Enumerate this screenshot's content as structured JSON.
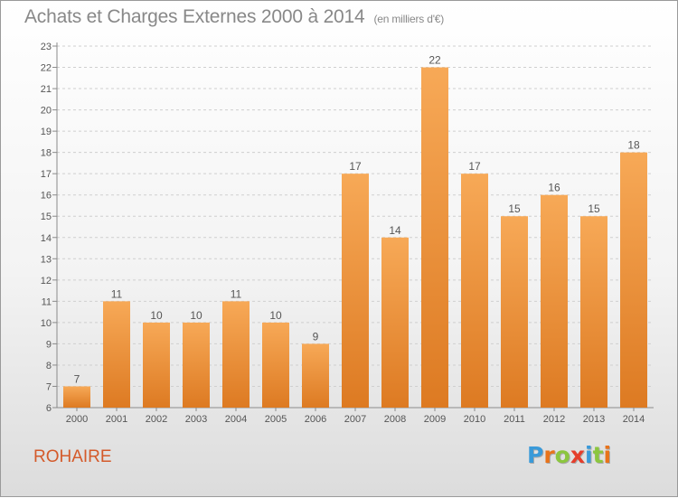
{
  "header": {
    "title": "Achats et Charges Externes 2000 à 2014",
    "unit": "(en milliers d'€)"
  },
  "footer": {
    "commune": "ROHAIRE",
    "logo_letters": [
      "P",
      "r",
      "o",
      "x",
      "i",
      "t",
      "i"
    ],
    "logo_colors": [
      "#3a9ad9",
      "#e8731a",
      "#8cc63f",
      "#e53d2b",
      "#3a9ad9",
      "#8cc63f",
      "#e8731a"
    ]
  },
  "colors": {
    "bar_light": "#f7a957",
    "bar_dark": "#dd7a22",
    "axis": "#8a8a8a",
    "grid": "#cfcfcf",
    "text": "#555555",
    "commune": "#d45a2a"
  },
  "chart_data": {
    "type": "bar",
    "title": "Achats et Charges Externes 2000 à 2014",
    "subtitle": "(en milliers d'€)",
    "categories": [
      "2000",
      "2001",
      "2002",
      "2003",
      "2004",
      "2005",
      "2006",
      "2007",
      "2008",
      "2009",
      "2010",
      "2011",
      "2012",
      "2013",
      "2014"
    ],
    "values": [
      7,
      11,
      10,
      10,
      11,
      10,
      9,
      17,
      14,
      22,
      17,
      15,
      16,
      15,
      18
    ],
    "ylim": [
      6,
      23
    ],
    "yticks": [
      6,
      7,
      8,
      9,
      10,
      11,
      12,
      13,
      14,
      15,
      16,
      17,
      18,
      19,
      20,
      21,
      22,
      23
    ],
    "grid": "horizontal dashed",
    "xlabel": "",
    "ylabel": ""
  }
}
